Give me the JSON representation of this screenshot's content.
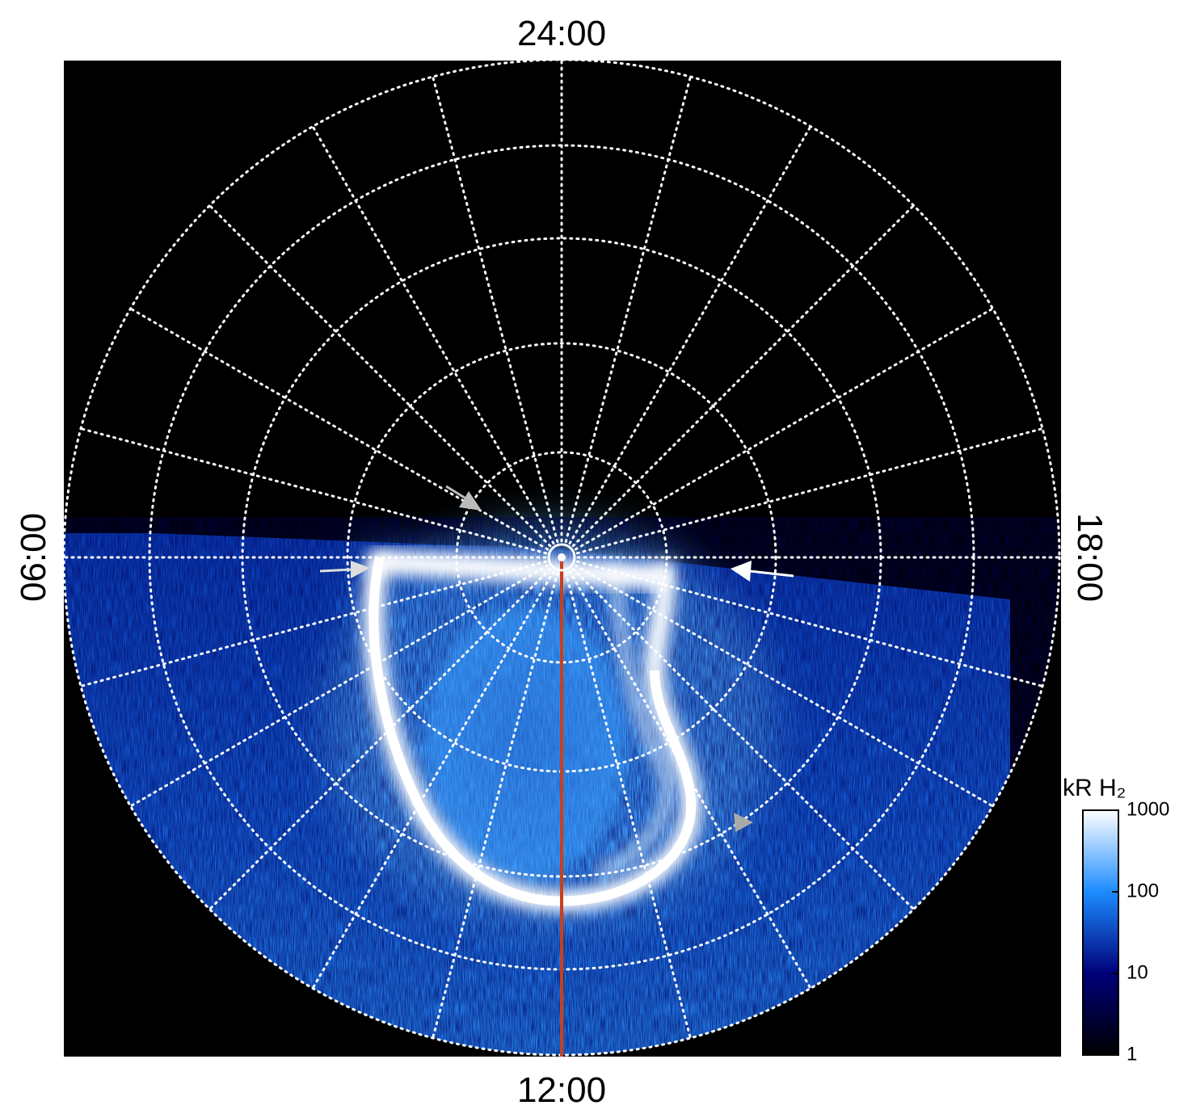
{
  "chart_data": {
    "type": "polar-image",
    "labels": {
      "top": "24:00",
      "bottom": "12:00",
      "left": "06:00",
      "right": "18:00"
    },
    "colorbar": {
      "title": "kR H₂",
      "clim": [
        1,
        1000
      ],
      "ticks": [
        1,
        10,
        100,
        1000
      ],
      "log": true,
      "colors": [
        "#000000",
        "#00007a",
        "#1c8cff",
        "#ffffff"
      ]
    }
  }
}
